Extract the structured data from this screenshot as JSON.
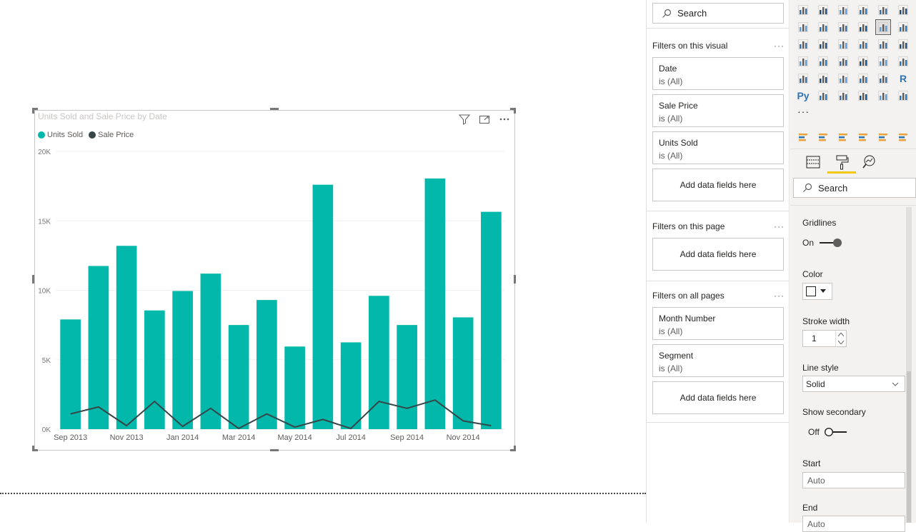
{
  "visual": {
    "title": "Units Sold and Sale Price by Date",
    "legend": [
      {
        "label": "Units Sold",
        "color": "#01B8AA"
      },
      {
        "label": "Sale Price",
        "color": "#374649"
      }
    ]
  },
  "chart_data": {
    "type": "bar",
    "title": "Units Sold and Sale Price by Date",
    "categories": [
      "Sep 2013",
      "Oct 2013",
      "Nov 2013",
      "Dec 2013",
      "Jan 2014",
      "Feb 2014",
      "Mar 2014",
      "Apr 2014",
      "May 2014",
      "Jun 2014",
      "Jul 2014",
      "Aug 2014",
      "Sep 2014",
      "Oct 2014",
      "Nov 2014",
      "Dec 2014"
    ],
    "x_tick_labels": [
      "Sep 2013",
      "Nov 2013",
      "Jan 2014",
      "Mar 2014",
      "May 2014",
      "Jul 2014",
      "Sep 2014",
      "Nov 2014"
    ],
    "series": [
      {
        "name": "Units Sold",
        "type": "bar",
        "color": "#01B8AA",
        "values": [
          7900,
          11750,
          13200,
          8550,
          9950,
          11200,
          7500,
          9300,
          5950,
          17600,
          6250,
          9600,
          7500,
          18050,
          8050,
          15650
        ]
      },
      {
        "name": "Sale Price",
        "type": "line",
        "color": "#374649",
        "values": [
          1100,
          1600,
          250,
          2000,
          200,
          1500,
          50,
          1100,
          150,
          700,
          50,
          2000,
          1500,
          2100,
          600,
          250
        ]
      }
    ],
    "y_ticks": [
      "0K",
      "5K",
      "10K",
      "15K",
      "20K"
    ],
    "ylim": [
      0,
      20000
    ],
    "grid": true,
    "legend_position": "top-left"
  },
  "filters": {
    "search_placeholder": "Search",
    "visual_section": "Filters on this visual",
    "visual_filters": [
      {
        "field": "Date",
        "state": "is (All)"
      },
      {
        "field": "Sale Price",
        "state": "is (All)"
      },
      {
        "field": "Units Sold",
        "state": "is (All)"
      }
    ],
    "page_section": "Filters on this page",
    "all_section": "Filters on all pages",
    "all_filters": [
      {
        "field": "Month Number",
        "state": "is (All)"
      },
      {
        "field": "Segment",
        "state": "is (All)"
      }
    ],
    "add_fields": "Add data fields here",
    "more": "···"
  },
  "viz_pane": {
    "more": "···",
    "python_label": "Py",
    "r_label": "R",
    "search_placeholder": "Search",
    "gridlines": {
      "label": "Gridlines",
      "state": "On"
    },
    "color": {
      "label": "Color",
      "value": "#ffffff"
    },
    "stroke_width": {
      "label": "Stroke width",
      "value": "1"
    },
    "line_style": {
      "label": "Line style",
      "value": "Solid"
    },
    "show_secondary": {
      "label": "Show secondary",
      "state": "Off"
    },
    "start": {
      "label": "Start",
      "placeholder": "Auto"
    },
    "end": {
      "label": "End",
      "placeholder": "Auto"
    }
  }
}
